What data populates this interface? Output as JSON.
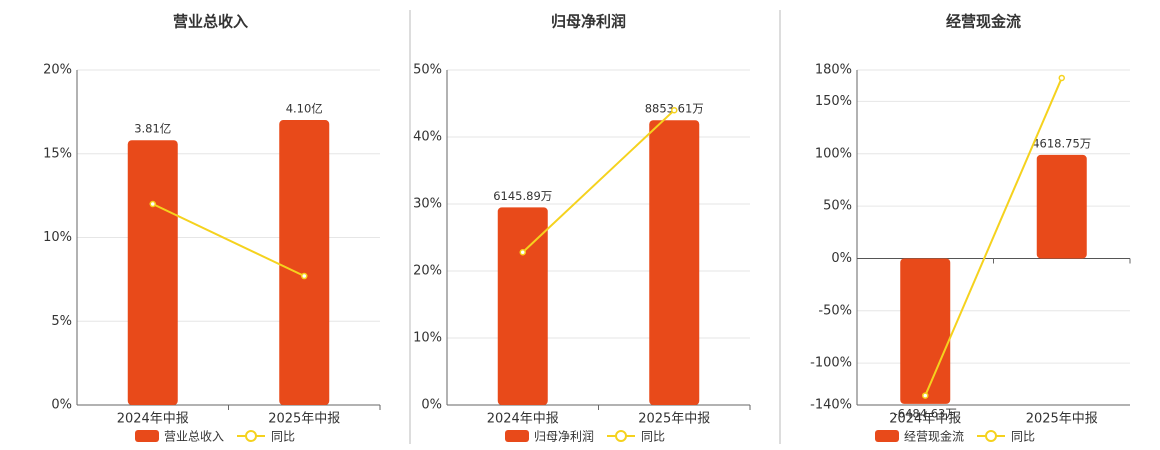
{
  "chart_data": [
    {
      "type": "bar",
      "title": "营业总收入",
      "categories": [
        "2024年中报",
        "2025年中报"
      ],
      "series": [
        {
          "name": "营业总收入",
          "type": "bar",
          "color": "#e84a1a",
          "axis": "y2",
          "values": [
            3.81,
            4.1
          ],
          "value_labels": [
            "3.81亿",
            "4.10亿"
          ]
        },
        {
          "name": "同比",
          "type": "line",
          "color": "#f5d21e",
          "values": [
            12.0,
            7.7
          ]
        }
      ],
      "ylim": [
        0,
        20
      ],
      "yticks": [
        {
          "value": 0,
          "label": "0%"
        },
        {
          "value": 5,
          "label": "5%"
        },
        {
          "value": 10,
          "label": "10%"
        },
        {
          "value": 15,
          "label": "15%"
        },
        {
          "value": 20,
          "label": "20%"
        }
      ],
      "y2lim": [
        0,
        4.82
      ],
      "grid": true,
      "legend": "bottom"
    },
    {
      "type": "bar",
      "title": "归母净利润",
      "categories": [
        "2024年中报",
        "2025年中报"
      ],
      "series": [
        {
          "name": "归母净利润",
          "type": "bar",
          "color": "#e84a1a",
          "axis": "y2",
          "values": [
            6145.89,
            8853.61
          ],
          "value_labels": [
            "6145.89万",
            "8853.61万"
          ]
        },
        {
          "name": "同比",
          "type": "line",
          "color": "#f5d21e",
          "values": [
            22.8,
            44.0
          ]
        }
      ],
      "ylim": [
        0,
        50
      ],
      "yticks": [
        {
          "value": 0,
          "label": "0%"
        },
        {
          "value": 10,
          "label": "10%"
        },
        {
          "value": 20,
          "label": "20%"
        },
        {
          "value": 30,
          "label": "30%"
        },
        {
          "value": 40,
          "label": "40%"
        },
        {
          "value": 50,
          "label": "50%"
        }
      ],
      "y2lim": [
        0,
        10416
      ],
      "grid": true,
      "legend": "bottom"
    },
    {
      "type": "bar",
      "title": "经营现金流",
      "categories": [
        "2024年中报",
        "2025年中报"
      ],
      "series": [
        {
          "name": "经营现金流",
          "type": "bar",
          "color": "#e84a1a",
          "axis": "y2",
          "values": [
            -6484.63,
            4618.75
          ],
          "value_labels": [
            "-6484.63万",
            "4618.75万"
          ]
        },
        {
          "name": "同比",
          "type": "line",
          "color": "#f5d21e",
          "values": [
            -131,
            172.4
          ]
        }
      ],
      "ylim": [
        -140,
        180
      ],
      "yticks": [
        {
          "value": -140,
          "label": "-140%"
        },
        {
          "value": -100,
          "label": "-100%"
        },
        {
          "value": -50,
          "label": "-50%"
        },
        {
          "value": 0,
          "label": "0%"
        },
        {
          "value": 50,
          "label": "50%"
        },
        {
          "value": 100,
          "label": "100%"
        },
        {
          "value": 150,
          "label": "150%"
        },
        {
          "value": 180,
          "label": "180%"
        }
      ],
      "y2lim": [
        -6533,
        8400
      ],
      "grid": true,
      "legend": "bottom"
    }
  ]
}
